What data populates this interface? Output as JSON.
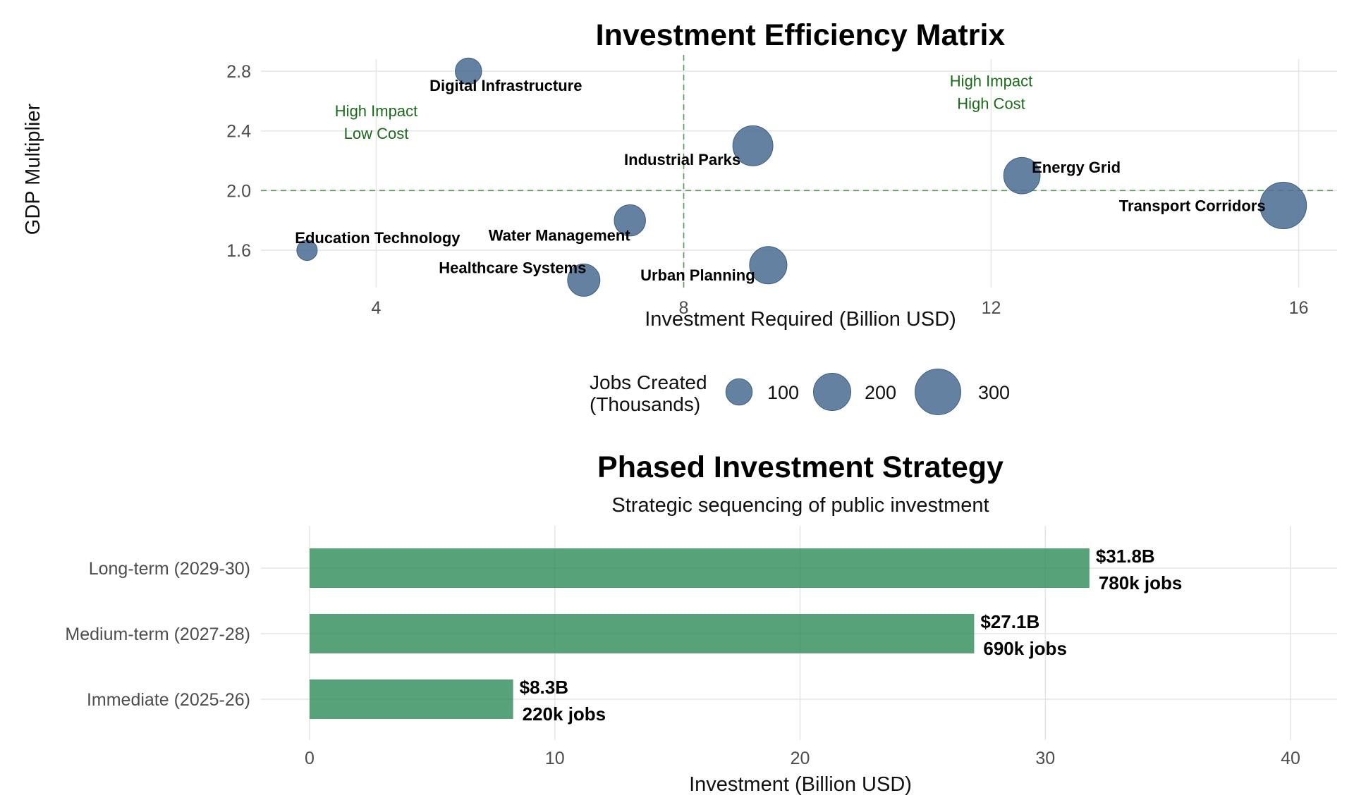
{
  "chart_data": [
    {
      "type": "scatter",
      "title": "Investment Efficiency Matrix",
      "xlabel": "Investment Required (Billion USD)",
      "ylabel": "GDP Multiplier",
      "xlim": [
        2.5,
        16.5
      ],
      "ylim": [
        1.35,
        2.88
      ],
      "x_ticks": [
        4,
        8,
        12,
        16
      ],
      "y_ticks": [
        1.6,
        2.0,
        2.4,
        2.8
      ],
      "grid": true,
      "ref_lines": {
        "x": 8,
        "y": 2.0
      },
      "annotations": [
        {
          "lines": [
            "High Impact",
            "Low Cost"
          ],
          "x": 4,
          "y": 2.47
        },
        {
          "lines": [
            "High Impact",
            "High Cost"
          ],
          "x": 12,
          "y": 2.67
        }
      ],
      "size_legend": {
        "title_lines": [
          "Jobs Created",
          "(Thousands)"
        ],
        "values": [
          100,
          200,
          300
        ],
        "labels": [
          "100",
          "200",
          "300"
        ],
        "placement": "bottom"
      },
      "points": [
        {
          "name": "Digital Infrastructure",
          "x": 5.2,
          "y": 2.8,
          "size": 100
        },
        {
          "name": "Industrial Parks",
          "x": 8.9,
          "y": 2.3,
          "size": 230
        },
        {
          "name": "Energy Grid",
          "x": 12.4,
          "y": 2.1,
          "size": 190
        },
        {
          "name": "Transport Corridors",
          "x": 15.8,
          "y": 1.9,
          "size": 310
        },
        {
          "name": "Education Technology",
          "x": 3.1,
          "y": 1.6,
          "size": 60
        },
        {
          "name": "Water Management",
          "x": 7.3,
          "y": 1.8,
          "size": 140
        },
        {
          "name": "Healthcare Systems",
          "x": 6.7,
          "y": 1.4,
          "size": 150
        },
        {
          "name": "Urban Planning",
          "x": 9.1,
          "y": 1.5,
          "size": 200
        }
      ]
    },
    {
      "type": "bar",
      "orientation": "horizontal",
      "title": "Phased Investment Strategy",
      "subtitle": "Strategic sequencing of public investment",
      "xlabel": "Investment (Billion USD)",
      "xlim": [
        0,
        42
      ],
      "x_ticks": [
        0,
        10,
        20,
        30,
        40
      ],
      "grid": true,
      "categories": [
        "Long-term (2029-30)",
        "Medium-term (2027-28)",
        "Immediate (2025-26)"
      ],
      "values": [
        31.8,
        27.1,
        8.3
      ],
      "value_labels": [
        "$31.8B",
        "$27.1B",
        "$8.3B"
      ],
      "jobs_labels": [
        "780k jobs",
        "690k jobs",
        "220k jobs"
      ]
    }
  ]
}
